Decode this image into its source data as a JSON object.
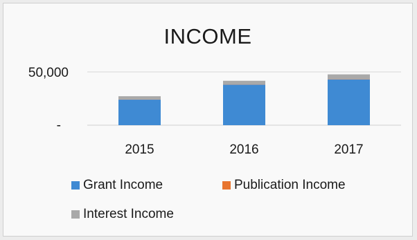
{
  "chart_data": {
    "type": "bar",
    "stacked": true,
    "title": "INCOME",
    "categories": [
      "2015",
      "2016",
      "2017"
    ],
    "y_tick_labels": [
      "-",
      "50,000"
    ],
    "ylim": [
      0,
      50000
    ],
    "grid": true,
    "legend_position": "bottom",
    "series": [
      {
        "name": "Grant Income",
        "color": "#3f8ad3",
        "values": [
          24000,
          38000,
          43000
        ]
      },
      {
        "name": "Publication Income",
        "color": "#e8752f",
        "values": [
          200,
          200,
          200
        ]
      },
      {
        "name": "Interest Income",
        "color": "#a9a9a9",
        "values": [
          3000,
          3500,
          4500
        ]
      }
    ]
  }
}
